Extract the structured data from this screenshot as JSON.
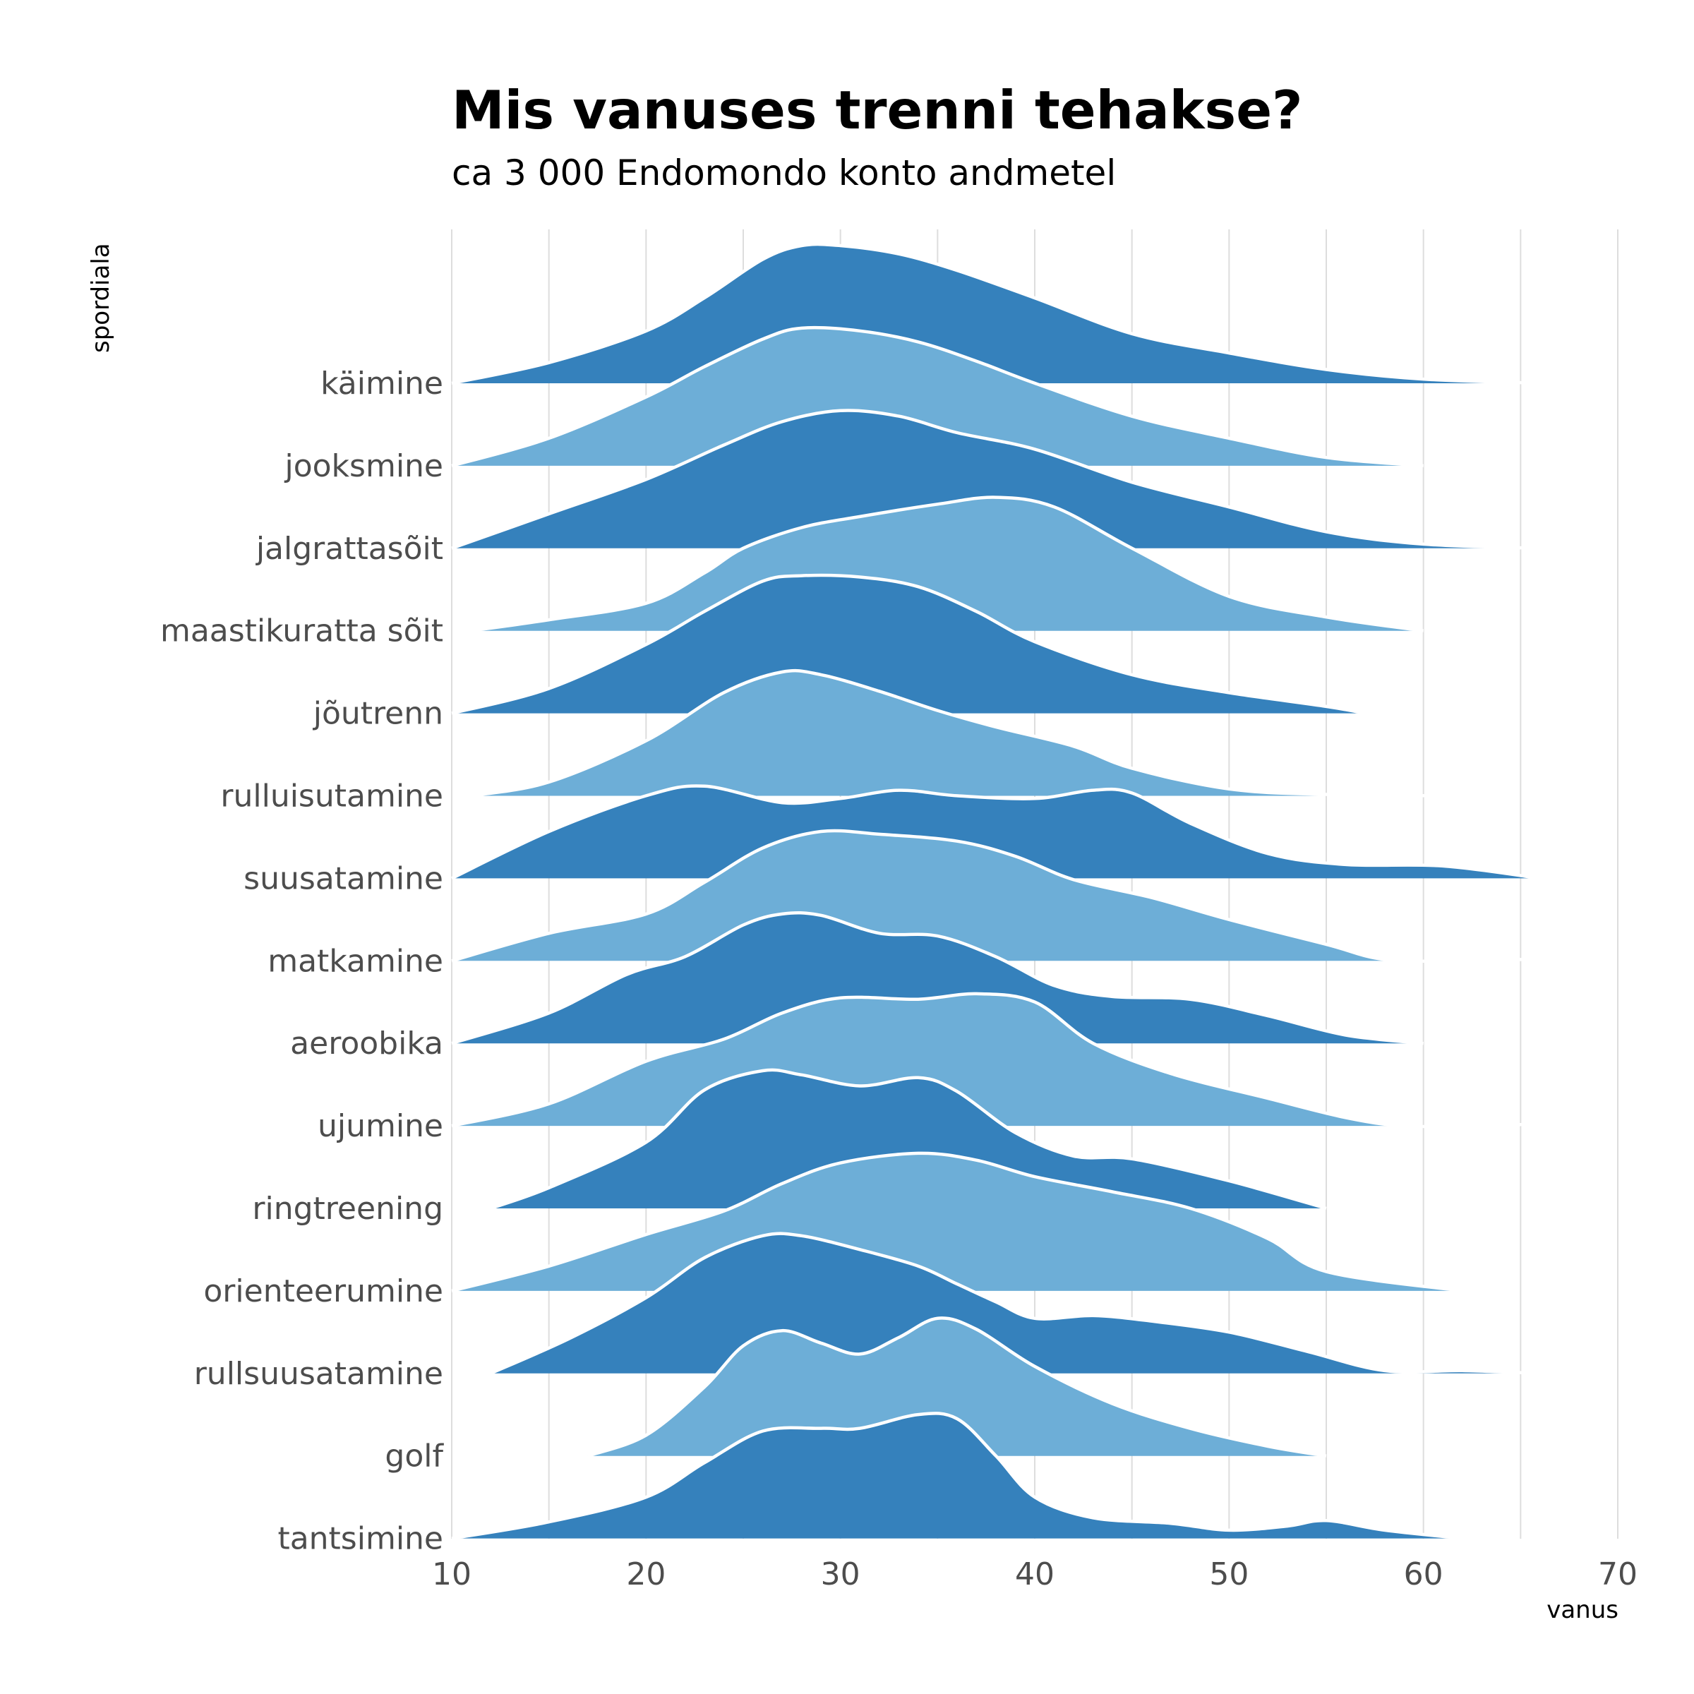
{
  "title": "Mis vanuses trenni tehakse?",
  "subtitle": "ca 3 000 Endomondo konto andmetel",
  "colors": {
    "dark": "#3581bc",
    "light": "#6daed7",
    "outline": "#ffffff",
    "grid": "#dddddd"
  },
  "chart_data": {
    "type": "ridgeline",
    "title": "Mis vanuses trenni tehakse?",
    "subtitle": "ca 3 000 Endomondo konto andmetel",
    "xlabel": "vanus",
    "ylabel": "spordiala",
    "xlim": [
      10,
      70
    ],
    "xticks": [
      10,
      20,
      30,
      40,
      50,
      60,
      70
    ],
    "grid": true,
    "legend": "none",
    "series": [
      {
        "name": "käimine",
        "fill": "dark",
        "points": [
          [
            10,
            0
          ],
          [
            15,
            0.15
          ],
          [
            20,
            0.38
          ],
          [
            23,
            0.62
          ],
          [
            26,
            0.9
          ],
          [
            28,
            1.0
          ],
          [
            30,
            1.0
          ],
          [
            33,
            0.94
          ],
          [
            36,
            0.82
          ],
          [
            40,
            0.62
          ],
          [
            45,
            0.36
          ],
          [
            50,
            0.22
          ],
          [
            55,
            0.1
          ],
          [
            60,
            0.03
          ],
          [
            66,
            0
          ]
        ]
      },
      {
        "name": "jooksmine",
        "fill": "light",
        "points": [
          [
            10,
            0
          ],
          [
            15,
            0.2
          ],
          [
            20,
            0.5
          ],
          [
            23,
            0.72
          ],
          [
            26,
            0.92
          ],
          [
            28,
            1.0
          ],
          [
            31,
            0.98
          ],
          [
            34,
            0.9
          ],
          [
            37,
            0.76
          ],
          [
            40,
            0.6
          ],
          [
            45,
            0.36
          ],
          [
            50,
            0.2
          ],
          [
            55,
            0.06
          ],
          [
            60,
            0
          ]
        ]
      },
      {
        "name": "jalgrattasõit",
        "fill": "dark",
        "points": [
          [
            10,
            0
          ],
          [
            15,
            0.25
          ],
          [
            20,
            0.5
          ],
          [
            24,
            0.75
          ],
          [
            27,
            0.92
          ],
          [
            30,
            1.0
          ],
          [
            33,
            0.96
          ],
          [
            36,
            0.84
          ],
          [
            40,
            0.72
          ],
          [
            45,
            0.48
          ],
          [
            50,
            0.3
          ],
          [
            55,
            0.12
          ],
          [
            60,
            0.03
          ],
          [
            66,
            0
          ]
        ]
      },
      {
        "name": "maastikuratta sõit",
        "fill": "light",
        "points": [
          [
            11,
            0
          ],
          [
            15,
            0.08
          ],
          [
            20,
            0.2
          ],
          [
            23,
            0.42
          ],
          [
            25,
            0.6
          ],
          [
            28,
            0.75
          ],
          [
            31,
            0.83
          ],
          [
            35,
            0.92
          ],
          [
            38,
            0.97
          ],
          [
            41,
            0.9
          ],
          [
            45,
            0.6
          ],
          [
            50,
            0.25
          ],
          [
            55,
            0.1
          ],
          [
            60,
            0
          ]
        ]
      },
      {
        "name": "jõutrenn",
        "fill": "dark",
        "points": [
          [
            10,
            0
          ],
          [
            15,
            0.18
          ],
          [
            20,
            0.5
          ],
          [
            23,
            0.74
          ],
          [
            26,
            0.96
          ],
          [
            28,
            1.0
          ],
          [
            31,
            0.99
          ],
          [
            34,
            0.92
          ],
          [
            37,
            0.74
          ],
          [
            40,
            0.52
          ],
          [
            45,
            0.28
          ],
          [
            50,
            0.15
          ],
          [
            55,
            0.05
          ],
          [
            57,
            0
          ]
        ]
      },
      {
        "name": "rulluisutamine",
        "fill": "light",
        "points": [
          [
            11,
            0
          ],
          [
            15,
            0.1
          ],
          [
            20,
            0.4
          ],
          [
            24,
            0.75
          ],
          [
            27,
            0.9
          ],
          [
            29,
            0.88
          ],
          [
            32,
            0.76
          ],
          [
            35,
            0.62
          ],
          [
            38,
            0.5
          ],
          [
            42,
            0.36
          ],
          [
            45,
            0.2
          ],
          [
            50,
            0.05
          ],
          [
            55,
            0.01
          ],
          [
            62,
            0
          ]
        ]
      },
      {
        "name": "suusatamine",
        "fill": "dark",
        "points": [
          [
            10,
            0
          ],
          [
            15,
            0.34
          ],
          [
            20,
            0.6
          ],
          [
            23,
            0.67
          ],
          [
            27,
            0.55
          ],
          [
            30,
            0.58
          ],
          [
            33,
            0.64
          ],
          [
            36,
            0.6
          ],
          [
            40,
            0.58
          ],
          [
            43,
            0.64
          ],
          [
            45,
            0.62
          ],
          [
            48,
            0.4
          ],
          [
            52,
            0.18
          ],
          [
            56,
            0.1
          ],
          [
            61,
            0.09
          ],
          [
            66,
            0
          ]
        ]
      },
      {
        "name": "matkamine",
        "fill": "light",
        "points": [
          [
            10,
            0
          ],
          [
            15,
            0.2
          ],
          [
            20,
            0.34
          ],
          [
            23,
            0.57
          ],
          [
            26,
            0.82
          ],
          [
            29,
            0.94
          ],
          [
            32,
            0.92
          ],
          [
            36,
            0.87
          ],
          [
            39,
            0.76
          ],
          [
            42,
            0.59
          ],
          [
            46,
            0.46
          ],
          [
            50,
            0.3
          ],
          [
            55,
            0.12
          ],
          [
            58,
            0.01
          ],
          [
            62,
            0
          ],
          [
            65,
            0.01
          ],
          [
            67,
            0
          ]
        ]
      },
      {
        "name": "aeroobika",
        "fill": "dark",
        "points": [
          [
            10,
            0
          ],
          [
            15,
            0.22
          ],
          [
            19,
            0.5
          ],
          [
            22,
            0.63
          ],
          [
            25,
            0.86
          ],
          [
            27,
            0.94
          ],
          [
            29,
            0.93
          ],
          [
            32,
            0.8
          ],
          [
            35,
            0.78
          ],
          [
            38,
            0.63
          ],
          [
            41,
            0.42
          ],
          [
            44,
            0.34
          ],
          [
            48,
            0.32
          ],
          [
            52,
            0.2
          ],
          [
            56,
            0.06
          ],
          [
            60,
            0
          ]
        ]
      },
      {
        "name": "ujumine",
        "fill": "light",
        "points": [
          [
            10,
            0
          ],
          [
            15,
            0.16
          ],
          [
            20,
            0.47
          ],
          [
            24,
            0.63
          ],
          [
            27,
            0.82
          ],
          [
            30,
            0.93
          ],
          [
            34,
            0.92
          ],
          [
            37,
            0.96
          ],
          [
            40,
            0.9
          ],
          [
            43,
            0.6
          ],
          [
            47,
            0.38
          ],
          [
            52,
            0.2
          ],
          [
            56,
            0.06
          ],
          [
            59,
            0
          ],
          [
            63,
            0
          ],
          [
            65,
            0.01
          ],
          [
            68,
            0
          ]
        ]
      },
      {
        "name": "ringtreening",
        "fill": "dark",
        "points": [
          [
            12,
            0
          ],
          [
            15,
            0.15
          ],
          [
            20,
            0.48
          ],
          [
            23,
            0.86
          ],
          [
            26,
            1.0
          ],
          [
            28,
            0.97
          ],
          [
            31,
            0.89
          ],
          [
            34,
            0.95
          ],
          [
            36,
            0.85
          ],
          [
            39,
            0.55
          ],
          [
            42,
            0.38
          ],
          [
            45,
            0.36
          ],
          [
            50,
            0.2
          ],
          [
            55,
            0
          ]
        ]
      },
      {
        "name": "orienteerumine",
        "fill": "light",
        "points": [
          [
            10,
            0
          ],
          [
            15,
            0.18
          ],
          [
            20,
            0.41
          ],
          [
            24,
            0.58
          ],
          [
            27,
            0.78
          ],
          [
            30,
            0.93
          ],
          [
            34,
            1.0
          ],
          [
            37,
            0.95
          ],
          [
            40,
            0.83
          ],
          [
            44,
            0.72
          ],
          [
            48,
            0.6
          ],
          [
            52,
            0.38
          ],
          [
            55,
            0.14
          ],
          [
            62,
            0
          ]
        ]
      },
      {
        "name": "rullsuusatamine",
        "fill": "dark",
        "points": [
          [
            12,
            0
          ],
          [
            16,
            0.25
          ],
          [
            20,
            0.55
          ],
          [
            23,
            0.84
          ],
          [
            26,
            1.0
          ],
          [
            28,
            1.0
          ],
          [
            31,
            0.9
          ],
          [
            34,
            0.78
          ],
          [
            36,
            0.65
          ],
          [
            38,
            0.52
          ],
          [
            40,
            0.4
          ],
          [
            43,
            0.42
          ],
          [
            46,
            0.38
          ],
          [
            50,
            0.3
          ],
          [
            54,
            0.16
          ],
          [
            58,
            0.02
          ],
          [
            62,
            0.02
          ],
          [
            66,
            0
          ]
        ]
      },
      {
        "name": "golf",
        "fill": "light",
        "points": [
          [
            17,
            0
          ],
          [
            20,
            0.15
          ],
          [
            23,
            0.5
          ],
          [
            25,
            0.8
          ],
          [
            27,
            0.91
          ],
          [
            29,
            0.82
          ],
          [
            31,
            0.74
          ],
          [
            33,
            0.86
          ],
          [
            35,
            1.0
          ],
          [
            37,
            0.92
          ],
          [
            40,
            0.65
          ],
          [
            44,
            0.38
          ],
          [
            48,
            0.2
          ],
          [
            52,
            0.07
          ],
          [
            55,
            0
          ]
        ]
      },
      {
        "name": "tantsimine",
        "fill": "dark",
        "points": [
          [
            10,
            0
          ],
          [
            15,
            0.12
          ],
          [
            20,
            0.3
          ],
          [
            23,
            0.55
          ],
          [
            26,
            0.78
          ],
          [
            29,
            0.8
          ],
          [
            31,
            0.8
          ],
          [
            34,
            0.9
          ],
          [
            36,
            0.87
          ],
          [
            38,
            0.6
          ],
          [
            40,
            0.3
          ],
          [
            43,
            0.15
          ],
          [
            47,
            0.11
          ],
          [
            50,
            0.06
          ],
          [
            53,
            0.09
          ],
          [
            55,
            0.13
          ],
          [
            58,
            0.06
          ],
          [
            62,
            0
          ]
        ]
      }
    ]
  }
}
